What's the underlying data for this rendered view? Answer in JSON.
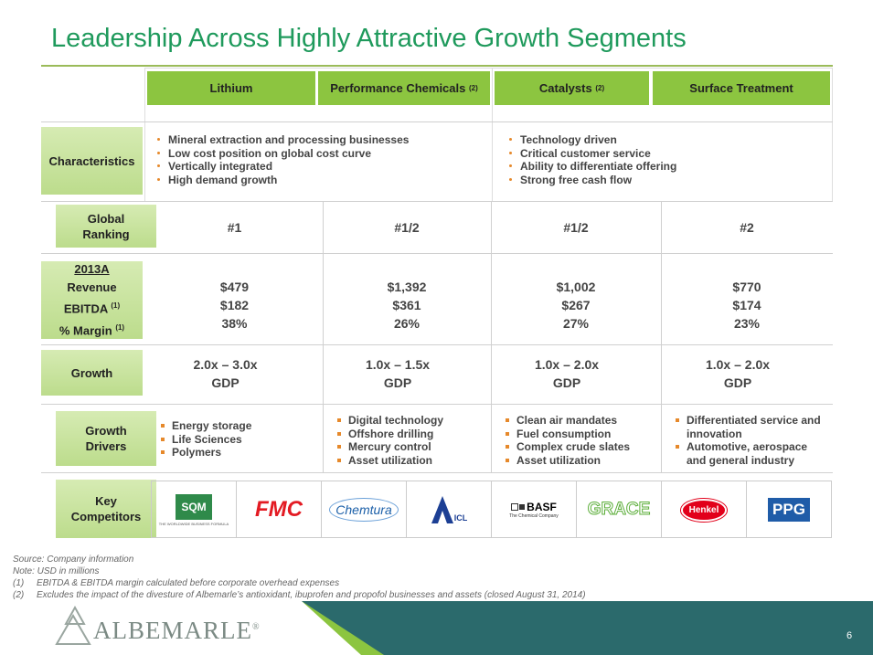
{
  "title": "Leadership Across Highly Attractive Growth Segments",
  "columns": [
    {
      "name": "Lithium"
    },
    {
      "name": "Performance Chemicals",
      "note": "(2)"
    },
    {
      "name": "Catalysts",
      "note": "(2)"
    },
    {
      "name": "Surface Treatment"
    }
  ],
  "characteristics": {
    "label": "Characteristics",
    "left": [
      "Mineral extraction and processing businesses",
      "Low cost position on global cost curve",
      "Vertically integrated",
      "High demand growth"
    ],
    "right": [
      "Technology driven",
      "Critical customer service",
      "Ability to differentiate offering",
      "Strong free cash flow"
    ]
  },
  "ranking": {
    "label": "Global Ranking",
    "values": [
      "#1",
      "#1/2",
      "#1/2",
      "#2"
    ]
  },
  "financials": {
    "period": "2013A",
    "labels": [
      {
        "text": "Revenue"
      },
      {
        "text": "EBITDA",
        "note": "(1)"
      },
      {
        "text": "% Margin",
        "note": "(1)"
      }
    ],
    "values": [
      [
        "$479",
        "$182",
        "38%"
      ],
      [
        "$1,392",
        "$361",
        "26%"
      ],
      [
        "$1,002",
        "$267",
        "27%"
      ],
      [
        "$770",
        "$174",
        "23%"
      ]
    ]
  },
  "growth": {
    "label": "Growth",
    "values": [
      [
        "2.0x – 3.0x",
        "GDP"
      ],
      [
        "1.0x – 1.5x",
        "GDP"
      ],
      [
        "1.0x – 2.0x",
        "GDP"
      ],
      [
        "1.0x – 2.0x",
        "GDP"
      ]
    ]
  },
  "drivers": {
    "label": "Growth Drivers",
    "values": [
      [
        "Energy storage",
        "Life Sciences",
        "Polymers"
      ],
      [
        "Digital technology",
        "Offshore drilling",
        "Mercury control",
        "Asset utilization"
      ],
      [
        "Clean air mandates",
        "Fuel consumption",
        "Complex crude slates",
        "Asset utilization"
      ],
      [
        "Differentiated service and innovation",
        "Automotive, aerospace and general industry"
      ]
    ]
  },
  "competitors": {
    "label": "Key Competitors",
    "logos": [
      {
        "name": "SQM",
        "tagline": "THE WORLDWIDE BUSINESS FORMULA"
      },
      {
        "name": "FMC"
      },
      {
        "name": "Chemtura"
      },
      {
        "name": "ICL"
      },
      {
        "name": "BASF",
        "tagline": "The Chemical Company"
      },
      {
        "name": "GRACE"
      },
      {
        "name": "Henkel"
      },
      {
        "name": "PPG"
      }
    ]
  },
  "footnotes": {
    "source": "Source: Company information",
    "note": "Note: USD in millions",
    "items": [
      {
        "marker": "(1)",
        "text": "EBITDA & EBITDA margin calculated before corporate overhead expenses"
      },
      {
        "marker": "(2)",
        "text": "Excludes the impact of the divesture of Albemarle’s antioxidant, ibuprofen and propofol businesses and assets (closed August 31, 2014)"
      }
    ]
  },
  "footer": {
    "brand": "ALBEMARLE",
    "mark": "®",
    "page": "6"
  }
}
